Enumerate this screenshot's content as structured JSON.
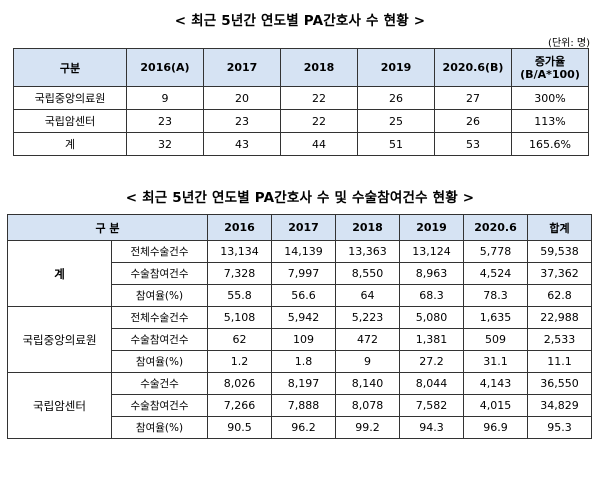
{
  "table1": {
    "title": "< 최근 5년간 연도별 PA간호사 수 현황 >",
    "unit": "(단위: 명)",
    "headers": [
      "구분",
      "2016(A)",
      "2017",
      "2018",
      "2019",
      "2020.6(B)",
      "증가율",
      "(B/A*100)"
    ],
    "rows": [
      {
        "label": "국립중앙의료원",
        "values": [
          "9",
          "20",
          "22",
          "26",
          "27",
          "300%"
        ]
      },
      {
        "label": "국립암센터",
        "values": [
          "23",
          "23",
          "22",
          "25",
          "26",
          "113%"
        ]
      },
      {
        "label": "계",
        "values": [
          "32",
          "43",
          "44",
          "51",
          "53",
          "165.6%"
        ]
      }
    ]
  },
  "table2": {
    "title": "< 최근 5년간 연도별 PA간호사 수 및 수술참여건수 현황 >",
    "headers": [
      "구 분",
      "2016",
      "2017",
      "2018",
      "2019",
      "2020.6",
      "합계"
    ],
    "groups": [
      {
        "name": "계",
        "rows": [
          {
            "label": "전체수술건수",
            "values": [
              "13,134",
              "14,139",
              "13,363",
              "13,124",
              "5,778",
              "59,538"
            ]
          },
          {
            "label": "수술참여건수",
            "values": [
              "7,328",
              "7,997",
              "8,550",
              "8,963",
              "4,524",
              "37,362"
            ]
          },
          {
            "label": "참여율(%)",
            "values": [
              "55.8",
              "56.6",
              "64",
              "68.3",
              "78.3",
              "62.8"
            ]
          }
        ]
      },
      {
        "name": "국립중앙의료원",
        "rows": [
          {
            "label": "전체수술건수",
            "values": [
              "5,108",
              "5,942",
              "5,223",
              "5,080",
              "1,635",
              "22,988"
            ]
          },
          {
            "label": "수술참여건수",
            "values": [
              "62",
              "109",
              "472",
              "1,381",
              "509",
              "2,533"
            ]
          },
          {
            "label": "참여율(%)",
            "values": [
              "1.2",
              "1.8",
              "9",
              "27.2",
              "31.1",
              "11.1"
            ]
          }
        ]
      },
      {
        "name": "국립암센터",
        "rows": [
          {
            "label": "수술건수",
            "values": [
              "8,026",
              "8,197",
              "8,140",
              "8,044",
              "4,143",
              "36,550"
            ]
          },
          {
            "label": "수술참여건수",
            "values": [
              "7,266",
              "7,888",
              "8,078",
              "7,582",
              "4,015",
              "34,829"
            ]
          },
          {
            "label": "참여율(%)",
            "values": [
              "90.5",
              "96.2",
              "99.2",
              "94.3",
              "96.9",
              "95.3"
            ]
          }
        ]
      }
    ]
  }
}
